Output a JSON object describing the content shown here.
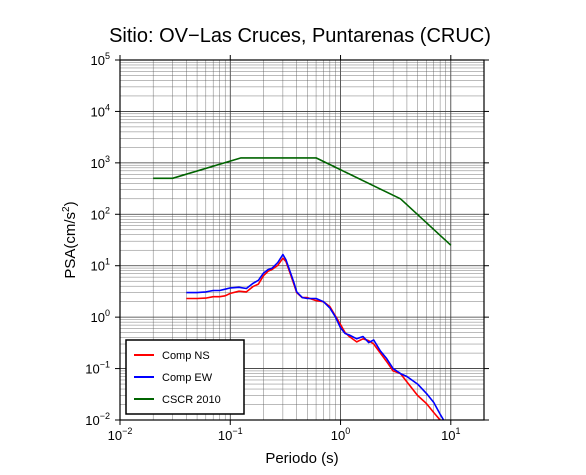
{
  "chart_data": {
    "type": "line",
    "title": "Sitio: OV−Las Cruces, Puntarenas (CRUC)",
    "xlabel": "Periodo (s)",
    "ylabel_main": "PSA(cm/s",
    "ylabel_sup": "2",
    "ylabel_close": ")",
    "x_scale": "log",
    "y_scale": "log",
    "xlim": [
      0.01,
      20
    ],
    "ylim": [
      0.01,
      100000
    ],
    "grid": true,
    "legend_position": "bottom-left",
    "x_ticks": [
      {
        "base": "10",
        "exp": "−2"
      },
      {
        "base": "10",
        "exp": "−1"
      },
      {
        "base": "10",
        "exp": "0"
      },
      {
        "base": "10",
        "exp": "1"
      }
    ],
    "y_ticks": [
      {
        "base": "10",
        "exp": "−2"
      },
      {
        "base": "10",
        "exp": "−1"
      },
      {
        "base": "10",
        "exp": "0"
      },
      {
        "base": "10",
        "exp": "1"
      },
      {
        "base": "10",
        "exp": "2"
      },
      {
        "base": "10",
        "exp": "3"
      },
      {
        "base": "10",
        "exp": "4"
      },
      {
        "base": "10",
        "exp": "5"
      }
    ],
    "series": [
      {
        "name": "Comp NS",
        "color": "#ff0000",
        "points": [
          [
            0.04,
            2.3
          ],
          [
            0.05,
            2.3
          ],
          [
            0.06,
            2.35
          ],
          [
            0.07,
            2.5
          ],
          [
            0.08,
            2.5
          ],
          [
            0.09,
            2.6
          ],
          [
            0.1,
            2.9
          ],
          [
            0.12,
            3.2
          ],
          [
            0.14,
            3.1
          ],
          [
            0.16,
            3.9
          ],
          [
            0.18,
            4.4
          ],
          [
            0.2,
            6.4
          ],
          [
            0.22,
            7.8
          ],
          [
            0.24,
            8.5
          ],
          [
            0.27,
            10.2
          ],
          [
            0.3,
            14.0
          ],
          [
            0.32,
            12.0
          ],
          [
            0.35,
            7.0
          ],
          [
            0.38,
            4.2
          ],
          [
            0.4,
            3.0
          ],
          [
            0.45,
            2.4
          ],
          [
            0.5,
            2.4
          ],
          [
            0.6,
            2.1
          ],
          [
            0.7,
            2.0
          ],
          [
            0.8,
            1.6
          ],
          [
            0.9,
            1.05
          ],
          [
            1.0,
            0.72
          ],
          [
            1.1,
            0.5
          ],
          [
            1.2,
            0.42
          ],
          [
            1.4,
            0.33
          ],
          [
            1.6,
            0.38
          ],
          [
            1.8,
            0.35
          ],
          [
            2.0,
            0.3
          ],
          [
            2.3,
            0.2
          ],
          [
            2.6,
            0.14
          ],
          [
            3.0,
            0.09
          ],
          [
            3.5,
            0.08
          ],
          [
            4.0,
            0.055
          ],
          [
            5.0,
            0.03
          ],
          [
            6.0,
            0.021
          ],
          [
            7.0,
            0.014
          ],
          [
            8.0,
            0.01
          ]
        ]
      },
      {
        "name": "Comp EW",
        "color": "#0000ff",
        "points": [
          [
            0.04,
            3.0
          ],
          [
            0.05,
            3.0
          ],
          [
            0.06,
            3.1
          ],
          [
            0.07,
            3.3
          ],
          [
            0.08,
            3.3
          ],
          [
            0.09,
            3.5
          ],
          [
            0.1,
            3.7
          ],
          [
            0.12,
            3.8
          ],
          [
            0.14,
            3.6
          ],
          [
            0.16,
            4.5
          ],
          [
            0.18,
            5.2
          ],
          [
            0.2,
            7.2
          ],
          [
            0.22,
            8.4
          ],
          [
            0.24,
            9.0
          ],
          [
            0.27,
            11.5
          ],
          [
            0.3,
            16.5
          ],
          [
            0.32,
            13.0
          ],
          [
            0.35,
            7.5
          ],
          [
            0.38,
            4.5
          ],
          [
            0.4,
            3.1
          ],
          [
            0.45,
            2.4
          ],
          [
            0.5,
            2.3
          ],
          [
            0.6,
            2.3
          ],
          [
            0.7,
            2.0
          ],
          [
            0.8,
            1.5
          ],
          [
            0.9,
            1.0
          ],
          [
            1.0,
            0.62
          ],
          [
            1.1,
            0.48
          ],
          [
            1.2,
            0.45
          ],
          [
            1.4,
            0.38
          ],
          [
            1.6,
            0.42
          ],
          [
            1.8,
            0.32
          ],
          [
            2.0,
            0.36
          ],
          [
            2.3,
            0.22
          ],
          [
            2.6,
            0.16
          ],
          [
            3.0,
            0.1
          ],
          [
            3.5,
            0.08
          ],
          [
            4.0,
            0.07
          ],
          [
            5.0,
            0.05
          ],
          [
            6.0,
            0.033
          ],
          [
            7.0,
            0.022
          ],
          [
            8.0,
            0.013
          ],
          [
            8.6,
            0.01
          ]
        ]
      },
      {
        "name": "CSCR 2010",
        "color": "#006400",
        "points": [
          [
            0.02,
            500
          ],
          [
            0.03,
            500
          ],
          [
            0.125,
            1250
          ],
          [
            0.6,
            1250
          ],
          [
            3.5,
            200
          ],
          [
            10.0,
            25
          ]
        ]
      }
    ]
  }
}
